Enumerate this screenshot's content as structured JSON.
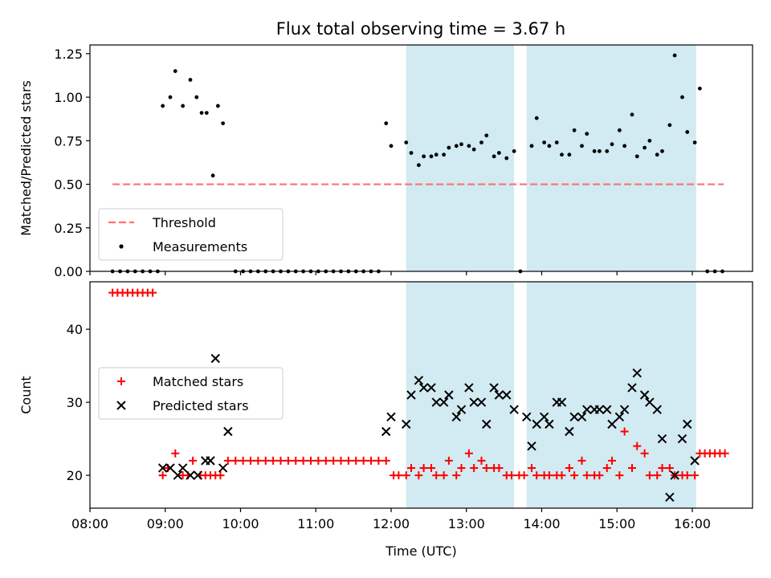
{
  "title": "Flux total observing time = 3.67 h",
  "chart_data": [
    {
      "type": "scatter",
      "panel": "top",
      "title": "Flux total observing time = 3.67 h",
      "xlabel": "",
      "ylabel": "Matched/Predicted stars",
      "xlim": [
        "08:00",
        "16:48"
      ],
      "ylim": [
        0,
        1.3
      ],
      "x_ticks": [
        "08:00",
        "09:00",
        "10:00",
        "11:00",
        "12:00",
        "13:00",
        "14:00",
        "15:00",
        "16:00"
      ],
      "y_ticks": [
        "0.00",
        "0.25",
        "0.50",
        "0.75",
        "1.00",
        "1.25"
      ],
      "shaded_spans": [
        [
          "12:12",
          "13:38"
        ],
        [
          "13:48",
          "16:03"
        ]
      ],
      "shade_color": "#add8e6",
      "legend": {
        "position": "lower-left",
        "entries": [
          "Threshold",
          "Measurements"
        ]
      },
      "threshold": {
        "name": "Threshold",
        "y": 0.5,
        "x_range": [
          "08:18",
          "16:25"
        ],
        "color": "#ff7070",
        "style": "dashed"
      },
      "series": [
        {
          "name": "Measurements",
          "color": "#000000",
          "marker": "dot",
          "points": [
            [
              "08:18",
              0
            ],
            [
              "08:24",
              0
            ],
            [
              "08:30",
              0
            ],
            [
              "08:36",
              0
            ],
            [
              "08:42",
              0
            ],
            [
              "08:48",
              0
            ],
            [
              "08:54",
              0
            ],
            [
              "08:58",
              0.95
            ],
            [
              "09:04",
              1.0
            ],
            [
              "09:08",
              1.15
            ],
            [
              "09:14",
              0.95
            ],
            [
              "09:20",
              1.1
            ],
            [
              "09:25",
              1.0
            ],
            [
              "09:29",
              0.91
            ],
            [
              "09:33",
              0.91
            ],
            [
              "09:38",
              0.55
            ],
            [
              "09:42",
              0.95
            ],
            [
              "09:46",
              0.85
            ],
            [
              "09:56",
              0
            ],
            [
              "10:02",
              0
            ],
            [
              "10:08",
              0
            ],
            [
              "10:14",
              0
            ],
            [
              "10:20",
              0
            ],
            [
              "10:26",
              0
            ],
            [
              "10:32",
              0
            ],
            [
              "10:38",
              0
            ],
            [
              "10:44",
              0
            ],
            [
              "10:50",
              0
            ],
            [
              "10:56",
              0
            ],
            [
              "11:02",
              0
            ],
            [
              "11:08",
              0
            ],
            [
              "11:14",
              0
            ],
            [
              "11:20",
              0
            ],
            [
              "11:26",
              0
            ],
            [
              "11:32",
              0
            ],
            [
              "11:38",
              0
            ],
            [
              "11:44",
              0
            ],
            [
              "11:50",
              0
            ],
            [
              "11:56",
              0.85
            ],
            [
              "12:00",
              0.72
            ],
            [
              "12:12",
              0.74
            ],
            [
              "12:16",
              0.68
            ],
            [
              "12:22",
              0.61
            ],
            [
              "12:26",
              0.66
            ],
            [
              "12:32",
              0.66
            ],
            [
              "12:36",
              0.67
            ],
            [
              "12:42",
              0.67
            ],
            [
              "12:46",
              0.71
            ],
            [
              "12:52",
              0.72
            ],
            [
              "12:56",
              0.73
            ],
            [
              "13:02",
              0.72
            ],
            [
              "13:06",
              0.7
            ],
            [
              "13:12",
              0.74
            ],
            [
              "13:16",
              0.78
            ],
            [
              "13:22",
              0.66
            ],
            [
              "13:26",
              0.68
            ],
            [
              "13:32",
              0.65
            ],
            [
              "13:38",
              0.69
            ],
            [
              "13:43",
              0
            ],
            [
              "13:52",
              0.72
            ],
            [
              "13:56",
              0.88
            ],
            [
              "14:02",
              0.74
            ],
            [
              "14:06",
              0.72
            ],
            [
              "14:12",
              0.74
            ],
            [
              "14:16",
              0.67
            ],
            [
              "14:22",
              0.67
            ],
            [
              "14:26",
              0.81
            ],
            [
              "14:32",
              0.72
            ],
            [
              "14:36",
              0.79
            ],
            [
              "14:42",
              0.69
            ],
            [
              "14:46",
              0.69
            ],
            [
              "14:52",
              0.69
            ],
            [
              "14:56",
              0.73
            ],
            [
              "15:02",
              0.81
            ],
            [
              "15:06",
              0.72
            ],
            [
              "15:12",
              0.9
            ],
            [
              "15:16",
              0.66
            ],
            [
              "15:22",
              0.71
            ],
            [
              "15:26",
              0.75
            ],
            [
              "15:32",
              0.67
            ],
            [
              "15:36",
              0.69
            ],
            [
              "15:42",
              0.84
            ],
            [
              "15:46",
              1.24
            ],
            [
              "15:52",
              1.0
            ],
            [
              "15:56",
              0.8
            ],
            [
              "16:02",
              0.74
            ],
            [
              "16:06",
              1.05
            ],
            [
              "16:12",
              0
            ],
            [
              "16:18",
              0
            ],
            [
              "16:24",
              0
            ]
          ]
        }
      ]
    },
    {
      "type": "scatter",
      "panel": "bottom",
      "xlabel": "Time (UTC)",
      "ylabel": "Count",
      "xlim": [
        "08:00",
        "16:48"
      ],
      "ylim": [
        15.5,
        46.5
      ],
      "x_ticks": [
        "08:00",
        "09:00",
        "10:00",
        "11:00",
        "12:00",
        "13:00",
        "14:00",
        "15:00",
        "16:00"
      ],
      "y_ticks": [
        "20",
        "30",
        "40"
      ],
      "shaded_spans": [
        [
          "12:12",
          "13:38"
        ],
        [
          "13:48",
          "16:03"
        ]
      ],
      "shade_color": "#add8e6",
      "legend": {
        "position": "center-left",
        "entries": [
          "Matched stars",
          "Predicted stars"
        ]
      },
      "series": [
        {
          "name": "Matched stars",
          "color": "#ff0000",
          "marker": "plus",
          "points": [
            [
              "08:18",
              45
            ],
            [
              "08:22",
              45
            ],
            [
              "08:26",
              45
            ],
            [
              "08:30",
              45
            ],
            [
              "08:34",
              45
            ],
            [
              "08:38",
              45
            ],
            [
              "08:42",
              45
            ],
            [
              "08:46",
              45
            ],
            [
              "08:50",
              45
            ],
            [
              "08:58",
              20
            ],
            [
              "09:02",
              21
            ],
            [
              "09:08",
              23
            ],
            [
              "09:14",
              20
            ],
            [
              "09:18",
              20
            ],
            [
              "09:22",
              22
            ],
            [
              "09:28",
              20
            ],
            [
              "09:32",
              20
            ],
            [
              "09:36",
              20
            ],
            [
              "09:40",
              20
            ],
            [
              "09:44",
              20
            ],
            [
              "09:50",
              22
            ],
            [
              "09:56",
              22
            ],
            [
              "10:02",
              22
            ],
            [
              "10:08",
              22
            ],
            [
              "10:14",
              22
            ],
            [
              "10:20",
              22
            ],
            [
              "10:26",
              22
            ],
            [
              "10:32",
              22
            ],
            [
              "10:38",
              22
            ],
            [
              "10:44",
              22
            ],
            [
              "10:50",
              22
            ],
            [
              "10:56",
              22
            ],
            [
              "11:02",
              22
            ],
            [
              "11:08",
              22
            ],
            [
              "11:14",
              22
            ],
            [
              "11:20",
              22
            ],
            [
              "11:26",
              22
            ],
            [
              "11:32",
              22
            ],
            [
              "11:38",
              22
            ],
            [
              "11:44",
              22
            ],
            [
              "11:50",
              22
            ],
            [
              "11:56",
              22
            ],
            [
              "12:02",
              20
            ],
            [
              "12:06",
              20
            ],
            [
              "12:12",
              20
            ],
            [
              "12:16",
              21
            ],
            [
              "12:22",
              20
            ],
            [
              "12:26",
              21
            ],
            [
              "12:32",
              21
            ],
            [
              "12:36",
              20
            ],
            [
              "12:42",
              20
            ],
            [
              "12:46",
              22
            ],
            [
              "12:52",
              20
            ],
            [
              "12:56",
              21
            ],
            [
              "13:02",
              23
            ],
            [
              "13:06",
              21
            ],
            [
              "13:12",
              22
            ],
            [
              "13:16",
              21
            ],
            [
              "13:22",
              21
            ],
            [
              "13:26",
              21
            ],
            [
              "13:32",
              20
            ],
            [
              "13:36",
              20
            ],
            [
              "13:42",
              20
            ],
            [
              "13:46",
              20
            ],
            [
              "13:52",
              21
            ],
            [
              "13:56",
              20
            ],
            [
              "14:02",
              20
            ],
            [
              "14:06",
              20
            ],
            [
              "14:12",
              20
            ],
            [
              "14:16",
              20
            ],
            [
              "14:22",
              21
            ],
            [
              "14:26",
              20
            ],
            [
              "14:32",
              22
            ],
            [
              "14:36",
              20
            ],
            [
              "14:42",
              20
            ],
            [
              "14:46",
              20
            ],
            [
              "14:52",
              21
            ],
            [
              "14:56",
              22
            ],
            [
              "15:02",
              20
            ],
            [
              "15:06",
              26
            ],
            [
              "15:12",
              21
            ],
            [
              "15:16",
              24
            ],
            [
              "15:22",
              23
            ],
            [
              "15:26",
              20
            ],
            [
              "15:32",
              20
            ],
            [
              "15:36",
              21
            ],
            [
              "15:42",
              21
            ],
            [
              "15:46",
              20
            ],
            [
              "15:52",
              20
            ],
            [
              "15:56",
              20
            ],
            [
              "16:02",
              20
            ],
            [
              "16:06",
              23
            ],
            [
              "16:10",
              23
            ],
            [
              "16:14",
              23
            ],
            [
              "16:18",
              23
            ],
            [
              "16:22",
              23
            ],
            [
              "16:26",
              23
            ]
          ]
        },
        {
          "name": "Predicted stars",
          "color": "#000000",
          "marker": "x",
          "points": [
            [
              "08:58",
              21
            ],
            [
              "09:04",
              21
            ],
            [
              "09:10",
              20
            ],
            [
              "09:14",
              21
            ],
            [
              "09:20",
              20
            ],
            [
              "09:26",
              20
            ],
            [
              "09:32",
              22
            ],
            [
              "09:36",
              22
            ],
            [
              "09:40",
              36
            ],
            [
              "09:46",
              21
            ],
            [
              "09:50",
              26
            ],
            [
              "11:56",
              26
            ],
            [
              "12:00",
              28
            ],
            [
              "12:12",
              27
            ],
            [
              "12:16",
              31
            ],
            [
              "12:22",
              33
            ],
            [
              "12:26",
              32
            ],
            [
              "12:32",
              32
            ],
            [
              "12:36",
              30
            ],
            [
              "12:42",
              30
            ],
            [
              "12:46",
              31
            ],
            [
              "12:52",
              28
            ],
            [
              "12:56",
              29
            ],
            [
              "13:02",
              32
            ],
            [
              "13:06",
              30
            ],
            [
              "13:12",
              30
            ],
            [
              "13:16",
              27
            ],
            [
              "13:22",
              32
            ],
            [
              "13:26",
              31
            ],
            [
              "13:32",
              31
            ],
            [
              "13:38",
              29
            ],
            [
              "13:48",
              28
            ],
            [
              "13:52",
              24
            ],
            [
              "13:56",
              27
            ],
            [
              "14:02",
              28
            ],
            [
              "14:06",
              27
            ],
            [
              "14:12",
              30
            ],
            [
              "14:16",
              30
            ],
            [
              "14:22",
              26
            ],
            [
              "14:26",
              28
            ],
            [
              "14:32",
              28
            ],
            [
              "14:36",
              29
            ],
            [
              "14:42",
              29
            ],
            [
              "14:46",
              29
            ],
            [
              "14:52",
              29
            ],
            [
              "14:56",
              27
            ],
            [
              "15:02",
              28
            ],
            [
              "15:06",
              29
            ],
            [
              "15:12",
              32
            ],
            [
              "15:16",
              34
            ],
            [
              "15:22",
              31
            ],
            [
              "15:26",
              30
            ],
            [
              "15:32",
              29
            ],
            [
              "15:36",
              25
            ],
            [
              "15:42",
              17
            ],
            [
              "15:46",
              20
            ],
            [
              "15:52",
              25
            ],
            [
              "15:56",
              27
            ],
            [
              "16:02",
              22
            ]
          ]
        }
      ]
    }
  ]
}
